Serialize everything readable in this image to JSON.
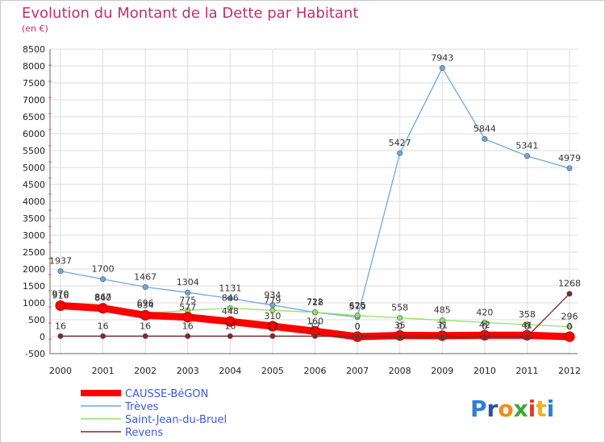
{
  "chart_data": {
    "type": "line",
    "title": "Evolution du Montant de la Dette par Habitant",
    "subtitle": "(en €)",
    "xlabel": "",
    "ylabel": "",
    "x": [
      "2000",
      "2001",
      "2002",
      "2003",
      "2004",
      "2005",
      "2006",
      "2007",
      "2008",
      "2009",
      "2010",
      "2011",
      "2012"
    ],
    "ylim": [
      -500,
      8500
    ],
    "yticks": [
      -500,
      0,
      500,
      1000,
      1500,
      2000,
      2500,
      3000,
      3500,
      4000,
      4500,
      5000,
      5500,
      6000,
      6500,
      7000,
      7500,
      8000,
      8500
    ],
    "grid": true,
    "legend_position": "bottom-left",
    "series": [
      {
        "name": "CAUSSE-BéGON",
        "color": "#ff0000",
        "values": [
          916,
          840,
          634,
          577,
          448,
          310,
          160,
          0,
          35,
          31,
          42,
          41,
          0
        ],
        "labels": [
          "916",
          "840",
          "634",
          "577",
          "448",
          "310",
          "160",
          "0",
          "35",
          "31",
          "42",
          "41",
          "0"
        ]
      },
      {
        "name": "Trèves",
        "color": "#6fa8dc",
        "values": [
          1937,
          1700,
          1467,
          1304,
          1131,
          934,
          718,
          579,
          5427,
          7943,
          5844,
          5341,
          4979
        ],
        "labels": [
          "1937",
          "1700",
          "1467",
          "1304",
          "1131",
          "934",
          "718",
          "579",
          "5427",
          "7943",
          "5844",
          "5341",
          "4979"
        ]
      },
      {
        "name": "Saint-Jean-du-Bruel",
        "color": "#99dd66",
        "values": [
          970,
          867,
          696,
          775,
          846,
          779,
          722,
          625,
          558,
          485,
          420,
          358,
          296
        ],
        "labels": [
          "970",
          "867",
          "696",
          "775",
          "846",
          "779",
          "722",
          "625",
          "558",
          "485",
          "420",
          "358",
          "296"
        ]
      },
      {
        "name": "Revens",
        "color": "#7a2a2a",
        "values": [
          16,
          16,
          16,
          16,
          16,
          17,
          17,
          0,
          0,
          0,
          0,
          0,
          1268
        ],
        "labels": [
          "16",
          "16",
          "16",
          "16",
          "16",
          "17",
          "17",
          "0",
          "0",
          "0",
          "0",
          "0",
          "1268"
        ]
      }
    ]
  },
  "branding": {
    "logo_text": "Proxiti"
  }
}
